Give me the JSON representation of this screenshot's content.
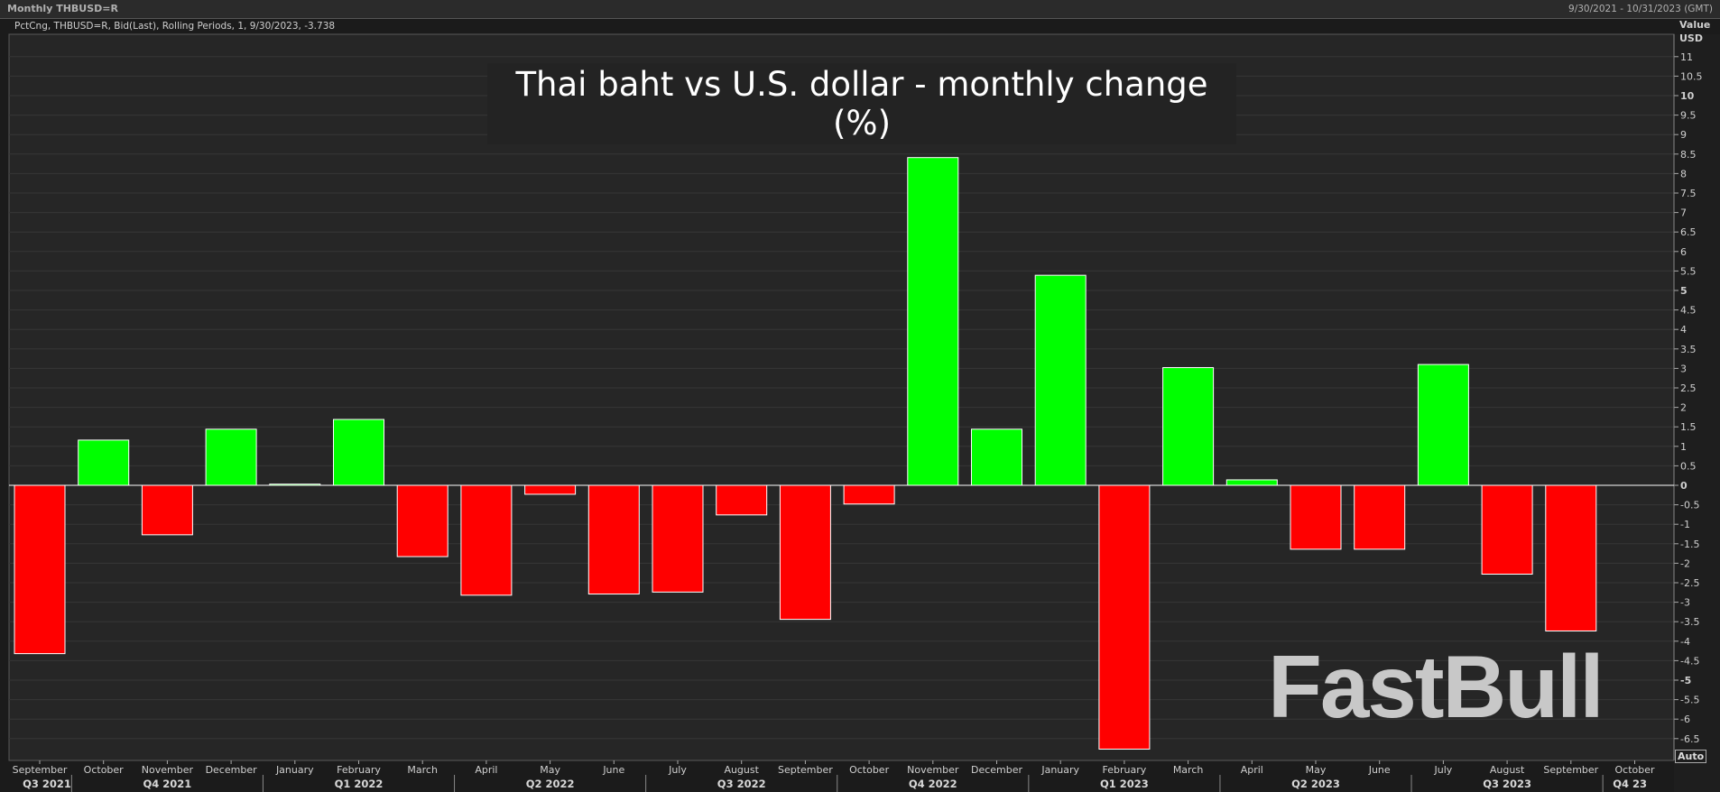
{
  "header": {
    "title": "Monthly THBUSD=R",
    "date_range": "9/30/2021 - 10/31/2023 (GMT)"
  },
  "subtitle": "PctCng, THBUSD=R, Bid(Last), Rolling Periods, 1, 9/30/2023, -3.738",
  "watermark": "FastBull",
  "auto_label": "Auto",
  "chart_data": {
    "type": "bar",
    "title": "Thai baht vs U.S. dollar - monthly change (%)",
    "ylabel": "Value",
    "yunit": "USD",
    "ylim": [
      -6.8,
      11.4
    ],
    "yticks": [
      11,
      10.5,
      10,
      9.5,
      9,
      8.5,
      8,
      7.5,
      7,
      6.5,
      6,
      5.5,
      5,
      4.5,
      4,
      3.5,
      3,
      2.5,
      2,
      1.5,
      1,
      0.5,
      0,
      -0.5,
      -1,
      -1.5,
      -2,
      -2.5,
      -3,
      -3.5,
      -4,
      -4.5,
      -5,
      -5.5,
      -6,
      -6.5
    ],
    "categories": [
      "September",
      "October",
      "November",
      "December",
      "January",
      "February",
      "March",
      "April",
      "May",
      "June",
      "July",
      "August",
      "September",
      "October",
      "November",
      "December",
      "January",
      "February",
      "March",
      "April",
      "May",
      "June",
      "July",
      "August",
      "September",
      "October"
    ],
    "values": [
      -4.32,
      1.16,
      -1.27,
      1.44,
      0.03,
      1.69,
      -1.83,
      -2.82,
      -0.23,
      -2.79,
      -2.74,
      -0.76,
      -3.44,
      -0.48,
      8.41,
      1.44,
      5.39,
      -6.77,
      3.02,
      0.14,
      -1.64,
      -1.64,
      3.1,
      -2.28,
      -3.738,
      null
    ],
    "quarters": [
      {
        "label": "Q3 2021",
        "from": 0,
        "to": 1
      },
      {
        "label": "Q4 2021",
        "from": 1,
        "to": 4
      },
      {
        "label": "Q1 2022",
        "from": 4,
        "to": 7
      },
      {
        "label": "Q2 2022",
        "from": 7,
        "to": 10
      },
      {
        "label": "Q3 2022",
        "from": 10,
        "to": 13
      },
      {
        "label": "Q4 2022",
        "from": 13,
        "to": 16
      },
      {
        "label": "Q1 2023",
        "from": 16,
        "to": 19
      },
      {
        "label": "Q2 2023",
        "from": 19,
        "to": 22
      },
      {
        "label": "Q3 2023",
        "from": 22,
        "to": 25
      },
      {
        "label": "Q4 23",
        "from": 25,
        "to": 26
      }
    ],
    "colors": {
      "positive": "#00ff00",
      "negative": "#ff0000",
      "background": "#262626",
      "grid": "#363636"
    },
    "grid": true
  }
}
